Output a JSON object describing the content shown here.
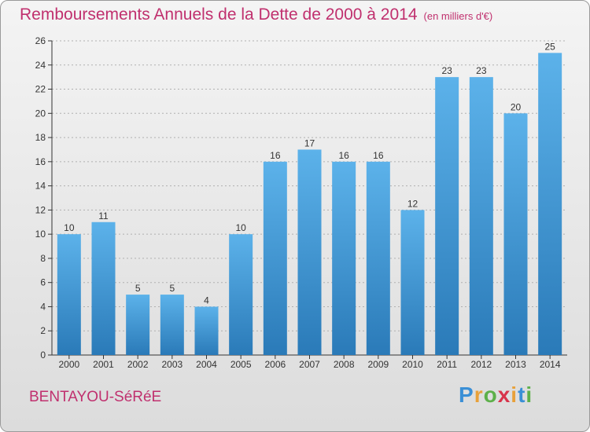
{
  "title": "Remboursements Annuels de la Dette de 2000 à 2014",
  "subtitle": "(en milliers d'€)",
  "town": "BENTAYOU-SéRéE",
  "brand": {
    "letters": [
      "P",
      "r",
      "o",
      "x",
      "i",
      "t",
      "i"
    ],
    "colors": [
      "#3a8fd6",
      "#e8a13a",
      "#5db04a",
      "#d8334a",
      "#e8a13a",
      "#3a8fd6",
      "#5db04a"
    ]
  },
  "colors": {
    "accent": "#c0306e",
    "bar_top": "#5cb2ea",
    "bar_bottom": "#2a7ab8",
    "axis": "#333333",
    "grid": "#b0b0b0"
  },
  "chart_data": {
    "type": "bar",
    "title": "Remboursements Annuels de la Dette de 2000 à 2014",
    "xlabel": "",
    "ylabel": "",
    "categories": [
      "2000",
      "2001",
      "2002",
      "2003",
      "2004",
      "2005",
      "2006",
      "2007",
      "2008",
      "2009",
      "2010",
      "2011",
      "2012",
      "2013",
      "2014"
    ],
    "values": [
      10,
      11,
      5,
      5,
      4,
      10,
      16,
      17,
      16,
      16,
      12,
      23,
      23,
      20,
      25
    ],
    "ylim": [
      0,
      26
    ],
    "yticks": [
      0,
      2,
      4,
      6,
      8,
      10,
      12,
      14,
      16,
      18,
      20,
      22,
      24,
      26
    ],
    "grid": true
  }
}
